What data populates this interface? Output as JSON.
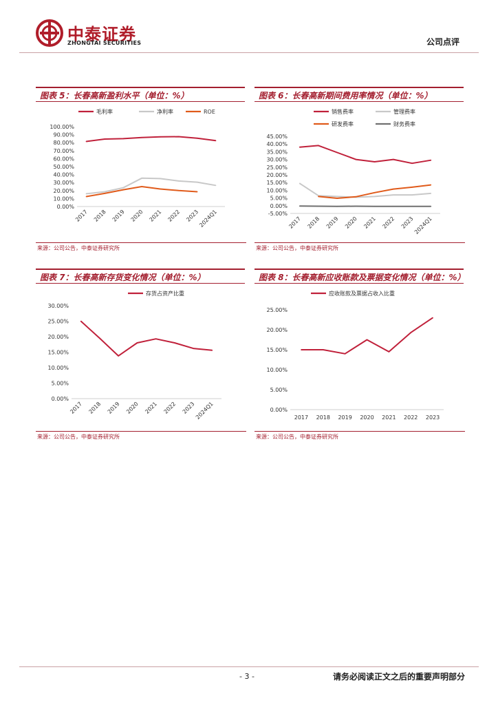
{
  "header": {
    "brand_cn": "中泰证券",
    "brand_en": "ZHONGTAI SECURITIES",
    "doc_type": "公司点评",
    "brand_color": "#b01d2a"
  },
  "footer": {
    "page_number": "- 3 -",
    "disclaimer": "请务必阅读正文之后的重要声明部分"
  },
  "panels": [
    {
      "title": "图表 5：长春高新盈利水平（单位：%）",
      "source": "来源：公司公告，中泰证券研究所"
    },
    {
      "title": "图表 6：长春高新期间费用率情况（单位：%）",
      "source": "来源：公司公告，中泰证券研究所"
    },
    {
      "title": "图表 7：长春高新存货变化情况（单位：%）",
      "source": "来源：公司公告，中泰证券研究所"
    },
    {
      "title": "图表 8：长春高新应收账款及票据变化情况（单位：%）",
      "source": "来源：公司公告，中泰证券研究所"
    }
  ],
  "chart_data": [
    {
      "type": "line",
      "categories": [
        "2017",
        "2018",
        "2019",
        "2020",
        "2021",
        "2022",
        "2023",
        "2024Q1"
      ],
      "ylim": [
        0,
        100
      ],
      "yticks": [
        "0.00%",
        "10.00%",
        "20.00%",
        "30.00%",
        "40.00%",
        "50.00%",
        "60.00%",
        "70.00%",
        "80.00%",
        "90.00%",
        "100.00%"
      ],
      "legend_position": "top",
      "series": [
        {
          "name": "毛利率",
          "color": "#c0203a",
          "values": [
            81.5,
            84.5,
            85.0,
            86.5,
            87.2,
            87.5,
            85.5,
            82.5
          ]
        },
        {
          "name": "净利率",
          "color": "#c8c8c8",
          "values": [
            16.0,
            18.5,
            23.5,
            35.5,
            35.0,
            32.0,
            30.5,
            26.5
          ]
        },
        {
          "name": "ROE",
          "color": "#e05a1a",
          "values": [
            12.5,
            16.5,
            21.0,
            25.0,
            22.0,
            20.0,
            18.5,
            null
          ]
        }
      ]
    },
    {
      "type": "line",
      "categories": [
        "2017",
        "2018",
        "2019",
        "2020",
        "2021",
        "2022",
        "2023",
        "2024Q1"
      ],
      "ylim": [
        -5,
        45
      ],
      "yticks": [
        "-5.00%",
        "0.00%",
        "5.00%",
        "10.00%",
        "15.00%",
        "20.00%",
        "25.00%",
        "30.00%",
        "35.00%",
        "40.00%",
        "45.00%"
      ],
      "legend_position": "top",
      "series": [
        {
          "name": "销售费率",
          "color": "#c0203a",
          "values": [
            38.0,
            39.0,
            34.5,
            30.0,
            28.5,
            30.0,
            27.5,
            29.5
          ]
        },
        {
          "name": "管理费率",
          "color": "#c8c8c8",
          "values": [
            14.5,
            6.5,
            6.0,
            5.5,
            6.0,
            7.0,
            7.0,
            8.0
          ]
        },
        {
          "name": "研发费率",
          "color": "#e05a1a",
          "values": [
            null,
            6.0,
            4.8,
            5.8,
            8.5,
            10.8,
            12.0,
            13.5
          ]
        },
        {
          "name": "财务费率",
          "color": "#707070",
          "values": [
            -0.2,
            -0.3,
            -0.4,
            -0.3,
            -0.4,
            -0.4,
            -0.4,
            -0.4
          ]
        }
      ]
    },
    {
      "type": "line",
      "categories": [
        "2017",
        "2018",
        "2019",
        "2020",
        "2021",
        "2022",
        "2023",
        "2024Q1"
      ],
      "ylim": [
        0,
        30
      ],
      "yticks": [
        "0.00%",
        "5.00%",
        "10.00%",
        "15.00%",
        "20.00%",
        "25.00%",
        "30.00%"
      ],
      "legend_position": "top",
      "series": [
        {
          "name": "存货占资产比重",
          "color": "#c0203a",
          "values": [
            25.0,
            19.5,
            13.8,
            18.0,
            19.3,
            18.0,
            16.2,
            15.6
          ]
        }
      ]
    },
    {
      "type": "line",
      "categories": [
        "2017",
        "2018",
        "2019",
        "2020",
        "2021",
        "2022",
        "2023"
      ],
      "ylim": [
        0,
        25
      ],
      "yticks": [
        "0.00%",
        "5.00%",
        "10.00%",
        "15.00%",
        "20.00%",
        "25.00%"
      ],
      "legend_position": "top",
      "series": [
        {
          "name": "应收账款及票据占收入比重",
          "color": "#c0203a",
          "values": [
            15.0,
            15.0,
            14.0,
            17.5,
            14.5,
            19.3,
            23.0
          ]
        }
      ]
    }
  ]
}
